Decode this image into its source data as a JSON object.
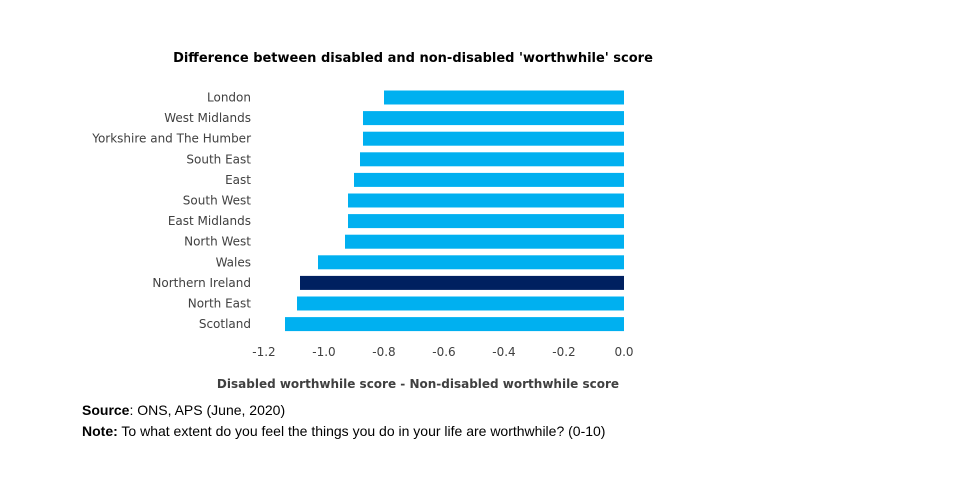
{
  "chart_data": {
    "type": "bar",
    "orientation": "horizontal",
    "title": "Difference between disabled and non-disabled 'worthwhile' score",
    "xlabel": "Disabled worthwhile score - Non-disabled worthwhile score",
    "ylabel": "",
    "xlim": [
      -1.2,
      0.0
    ],
    "xticks": [
      "-1.2",
      "-1.0",
      "-0.8",
      "-0.6",
      "-0.4",
      "-0.2",
      "0.0"
    ],
    "xtick_values": [
      -1.2,
      -1.0,
      -0.8,
      -0.6,
      -0.4,
      -0.2,
      0.0
    ],
    "grid": false,
    "legend": "none",
    "categories": [
      "London",
      "West Midlands",
      "Yorkshire and The Humber",
      "South East",
      "East",
      "South West",
      "East Midlands",
      "North West",
      "Wales",
      "Northern Ireland",
      "North East",
      "Scotland"
    ],
    "values": [
      -0.8,
      -0.87,
      -0.87,
      -0.88,
      -0.9,
      -0.92,
      -0.92,
      -0.93,
      -1.02,
      -1.08,
      -1.09,
      -1.13
    ],
    "highlight": "Northern Ireland",
    "colors": {
      "default": "#00B0F0",
      "highlight": "#002060"
    }
  },
  "source": {
    "label": "Source",
    "text": ": ONS, APS (June, 2020)"
  },
  "note": {
    "label": "Note:",
    "text": " To what extent do you feel the things you do in your life are worthwhile?  (0-10)"
  }
}
